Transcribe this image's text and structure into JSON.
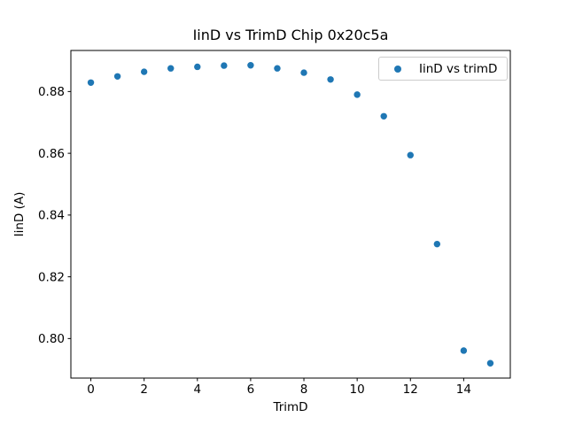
{
  "chart_data": {
    "type": "scatter",
    "title": "IinD vs TrimD Chip 0x20c5a",
    "xlabel": "TrimD",
    "ylabel": "IinD (A)",
    "legend": [
      "IinD vs trimD"
    ],
    "legend_position": "upper right",
    "marker_color": "#1f77b4",
    "background_color": "#ffffff",
    "grid": false,
    "x": [
      0,
      1,
      2,
      3,
      4,
      5,
      6,
      7,
      8,
      9,
      10,
      11,
      12,
      13,
      14,
      15
    ],
    "y": [
      0.8829,
      0.8849,
      0.8864,
      0.8875,
      0.888,
      0.8884,
      0.8885,
      0.8875,
      0.8861,
      0.8839,
      0.879,
      0.872,
      0.8594,
      0.8306,
      0.7961,
      0.792
    ],
    "xlim": [
      -0.75,
      15.75
    ],
    "ylim": [
      0.7872,
      0.8933
    ],
    "xticks": [
      0,
      2,
      4,
      6,
      8,
      10,
      12,
      14
    ],
    "yticks": [
      0.8,
      0.82,
      0.84,
      0.86,
      0.88
    ]
  }
}
